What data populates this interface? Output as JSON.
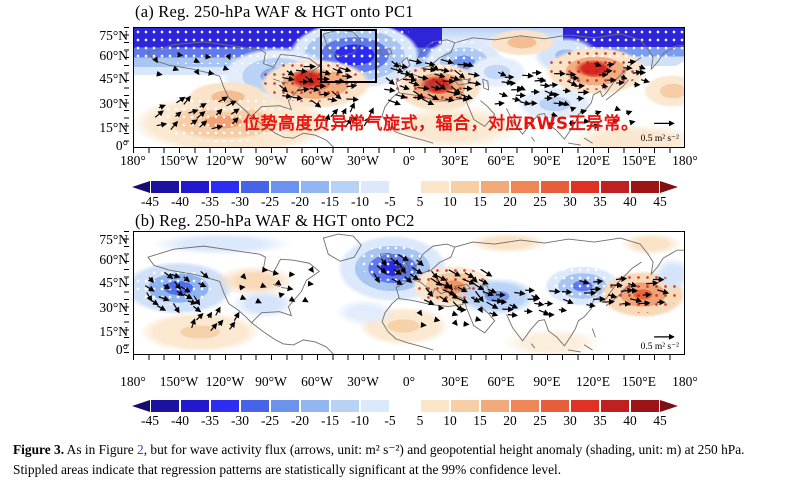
{
  "panels": [
    {
      "title": "(a) Reg. 250-hPa WAF & HGT onto PC1",
      "ref_arrow_label": "0.5 m² s⁻²"
    },
    {
      "title": "(b) Reg. 250-hPa WAF & HGT onto PC2",
      "ref_arrow_label": "0.5 m² s⁻²"
    }
  ],
  "axes": {
    "x_ticks": [
      "180°",
      "150°W",
      "120°W",
      "90°W",
      "60°W",
      "30°W",
      "0°",
      "30°E",
      "60°E",
      "90°E",
      "120°E",
      "150°E",
      "180°"
    ],
    "y_ticks": [
      "75°N",
      "60°N",
      "45°N",
      "30°N",
      "15°N",
      "0°"
    ]
  },
  "colorbar": {
    "tick_labels": [
      "-45",
      "-40",
      "-35",
      "-30",
      "-25",
      "-20",
      "-15",
      "-10",
      "-5",
      "5",
      "10",
      "15",
      "20",
      "25",
      "30",
      "35",
      "40",
      "45"
    ],
    "negative_colors": [
      "#1c12a0",
      "#2418cf",
      "#2c2cf2",
      "#4763e8",
      "#6b93ee",
      "#92b6f2",
      "#b8d2f6",
      "#dbe9fb"
    ],
    "positive_colors": [
      "#fbe6c9",
      "#f7cfa6",
      "#f2aa7a",
      "#ee8656",
      "#e85e3a",
      "#df3222",
      "#c02020",
      "#9d1417"
    ],
    "left_arrow_color": "#140c6e",
    "right_arrow_color": "#7f0f12"
  },
  "annotation": {
    "text": "位势高度负异常气旋式，辐合，对应RWS正异常。",
    "color": "#e8150f"
  },
  "highlight_box": {
    "panel": "a",
    "lon_range": "60°W–25°W",
    "lat_range": "45°N–80°N"
  },
  "caption": {
    "label": "Figure 3.",
    "pre_link": "  As in Figure ",
    "link_text": "2",
    "post_link": ", but for wave activity flux (arrows, unit: m² s⁻²) and geopotential height anomaly (shading, unit: m) at 250 hPa. Stippled areas indicate that regression patterns are statistically significant at the 99% confidence level.",
    "link_color": "#3c3cc8"
  },
  "chart_data": [
    {
      "type": "heatmap",
      "title": "(a) Reg. 250-hPa WAF & HGT onto PC1",
      "x_axis": {
        "ticks": [
          "180°",
          "150°W",
          "120°W",
          "90°W",
          "60°W",
          "30°W",
          "0°",
          "30°E",
          "60°E",
          "90°E",
          "120°E",
          "150°E",
          "180°"
        ],
        "range_deg_east": [
          -180,
          180
        ]
      },
      "y_axis": {
        "ticks": [
          "0°",
          "15°N",
          "30°N",
          "45°N",
          "60°N",
          "75°N"
        ],
        "range_deg_north": [
          0,
          80
        ]
      },
      "shading_variable": "250-hPa geopotential height anomaly regressed onto PC1 (m)",
      "vector_variable": "wave activity flux (m² s⁻²)",
      "reference_vector": 0.5,
      "colorbar_levels": [
        -45,
        -40,
        -35,
        -30,
        -25,
        -20,
        -15,
        -10,
        -5,
        5,
        10,
        15,
        20,
        25,
        30,
        35,
        40,
        45
      ],
      "anomaly_centers": [
        {
          "lon": -130,
          "lat": 71,
          "value": -45,
          "stippled": true
        },
        {
          "lon": 170,
          "lat": 72,
          "value": -40,
          "stippled": true
        },
        {
          "lon": -40,
          "lat": 62,
          "value": -30,
          "stippled": true,
          "boxed": true
        },
        {
          "lon": -95,
          "lat": 52,
          "value": -15,
          "stippled": false
        },
        {
          "lon": 40,
          "lat": 57,
          "value": -15,
          "stippled": false
        },
        {
          "lon": 95,
          "lat": 30,
          "value": -10,
          "stippled": false
        },
        {
          "lon": -65,
          "lat": 46,
          "value": 30,
          "stippled": true
        },
        {
          "lon": 15,
          "lat": 46,
          "value": 30,
          "stippled": true
        },
        {
          "lon": 120,
          "lat": 52,
          "value": 30,
          "stippled": true
        },
        {
          "lon": -140,
          "lat": 18,
          "value": 15,
          "stippled": true
        },
        {
          "lon": -120,
          "lat": 33,
          "value": 15,
          "stippled": false
        },
        {
          "lon": 75,
          "lat": 70,
          "value": 10,
          "stippled": false
        }
      ],
      "flux_description": "strong eastward wave activity flux from North America across the North Atlantic into Europe and Asia along 35–55°N; northeastward flux in the subtropical central Pacific"
    },
    {
      "type": "heatmap",
      "title": "(b) Reg. 250-hPa WAF & HGT onto PC2",
      "x_axis": {
        "ticks": [
          "180°",
          "150°W",
          "120°W",
          "90°W",
          "60°W",
          "30°W",
          "0°",
          "30°E",
          "60°E",
          "90°E",
          "120°E",
          "150°E",
          "180°"
        ],
        "range_deg_east": [
          -180,
          180
        ]
      },
      "y_axis": {
        "ticks": [
          "0°",
          "15°N",
          "30°N",
          "45°N",
          "60°N",
          "75°N"
        ],
        "range_deg_north": [
          0,
          80
        ]
      },
      "shading_variable": "250-hPa geopotential height anomaly regressed onto PC2 (m)",
      "vector_variable": "wave activity flux (m² s⁻²)",
      "reference_vector": 0.5,
      "colorbar_levels": [
        -45,
        -40,
        -35,
        -30,
        -25,
        -20,
        -15,
        -10,
        -5,
        5,
        10,
        15,
        20,
        25,
        30,
        35,
        40,
        45
      ],
      "anomaly_centers": [
        {
          "lon": -15,
          "lat": 58,
          "value": -40,
          "stippled": true
        },
        {
          "lon": -150,
          "lat": 44,
          "value": -25,
          "stippled": true
        },
        {
          "lon": 115,
          "lat": 45,
          "value": -20,
          "stippled": true
        },
        {
          "lon": 55,
          "lat": 38,
          "value": -15,
          "stippled": false
        },
        {
          "lon": 150,
          "lat": 40,
          "value": 25,
          "stippled": true
        },
        {
          "lon": 25,
          "lat": 45,
          "value": 20,
          "stippled": true
        },
        {
          "lon": -100,
          "lat": 48,
          "value": 10,
          "stippled": false
        },
        {
          "lon": -5,
          "lat": 18,
          "value": 10,
          "stippled": false
        }
      ],
      "flux_description": "wave activity flux emanating from the North Atlantic southeastward across Europe and the Middle East toward East Asia; southeastward flux in the northeast Pacific"
    }
  ]
}
